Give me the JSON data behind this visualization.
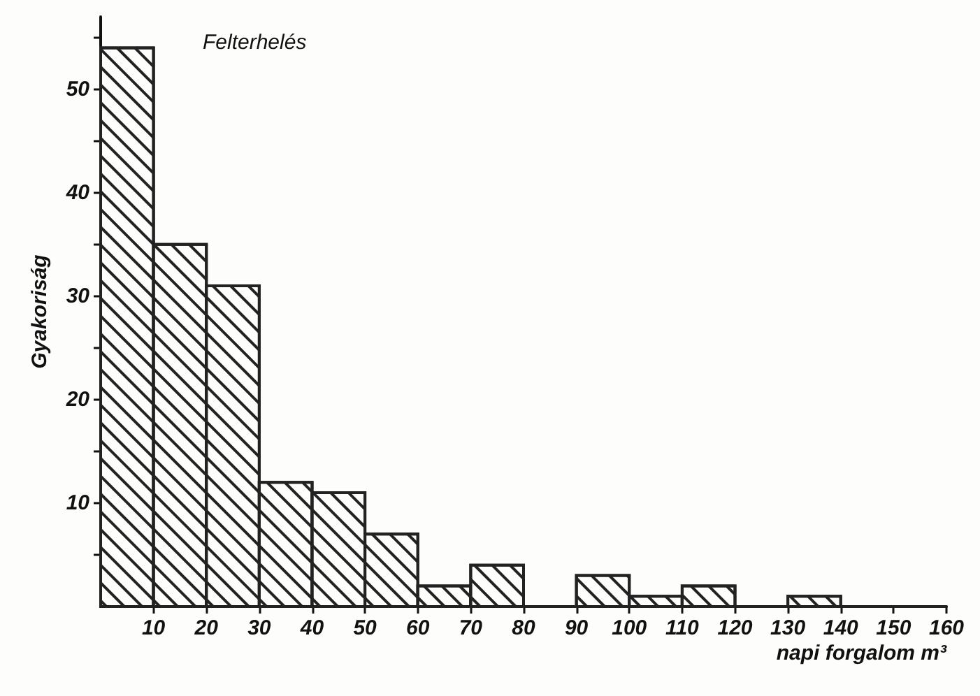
{
  "chart_data": {
    "type": "histogram",
    "title": "Felterhelés",
    "xlabel": "napi forgalom m³",
    "ylabel": "Gyakoriság",
    "bins": [
      0,
      10,
      20,
      30,
      40,
      50,
      60,
      70,
      80,
      90,
      100,
      110,
      120,
      130,
      140,
      150,
      160
    ],
    "values": [
      54,
      35,
      31,
      12,
      11,
      7,
      2,
      4,
      0,
      3,
      1,
      2,
      0,
      1,
      0,
      0
    ],
    "color": "#222222",
    "xlim": [
      0,
      160
    ],
    "xticks": [
      10,
      20,
      30,
      40,
      50,
      60,
      70,
      80,
      90,
      100,
      110,
      120,
      130,
      140,
      150,
      160
    ],
    "ylim": [
      0,
      57
    ],
    "yticks": [
      {
        "value": 5,
        "label": null
      },
      10,
      {
        "value": 15,
        "label": null
      },
      20,
      {
        "value": 25,
        "label": null
      },
      30,
      {
        "value": 35,
        "label": null
      },
      40,
      {
        "value": 45,
        "label": null
      },
      50,
      {
        "value": 55,
        "label": null
      }
    ],
    "grid": false
  }
}
